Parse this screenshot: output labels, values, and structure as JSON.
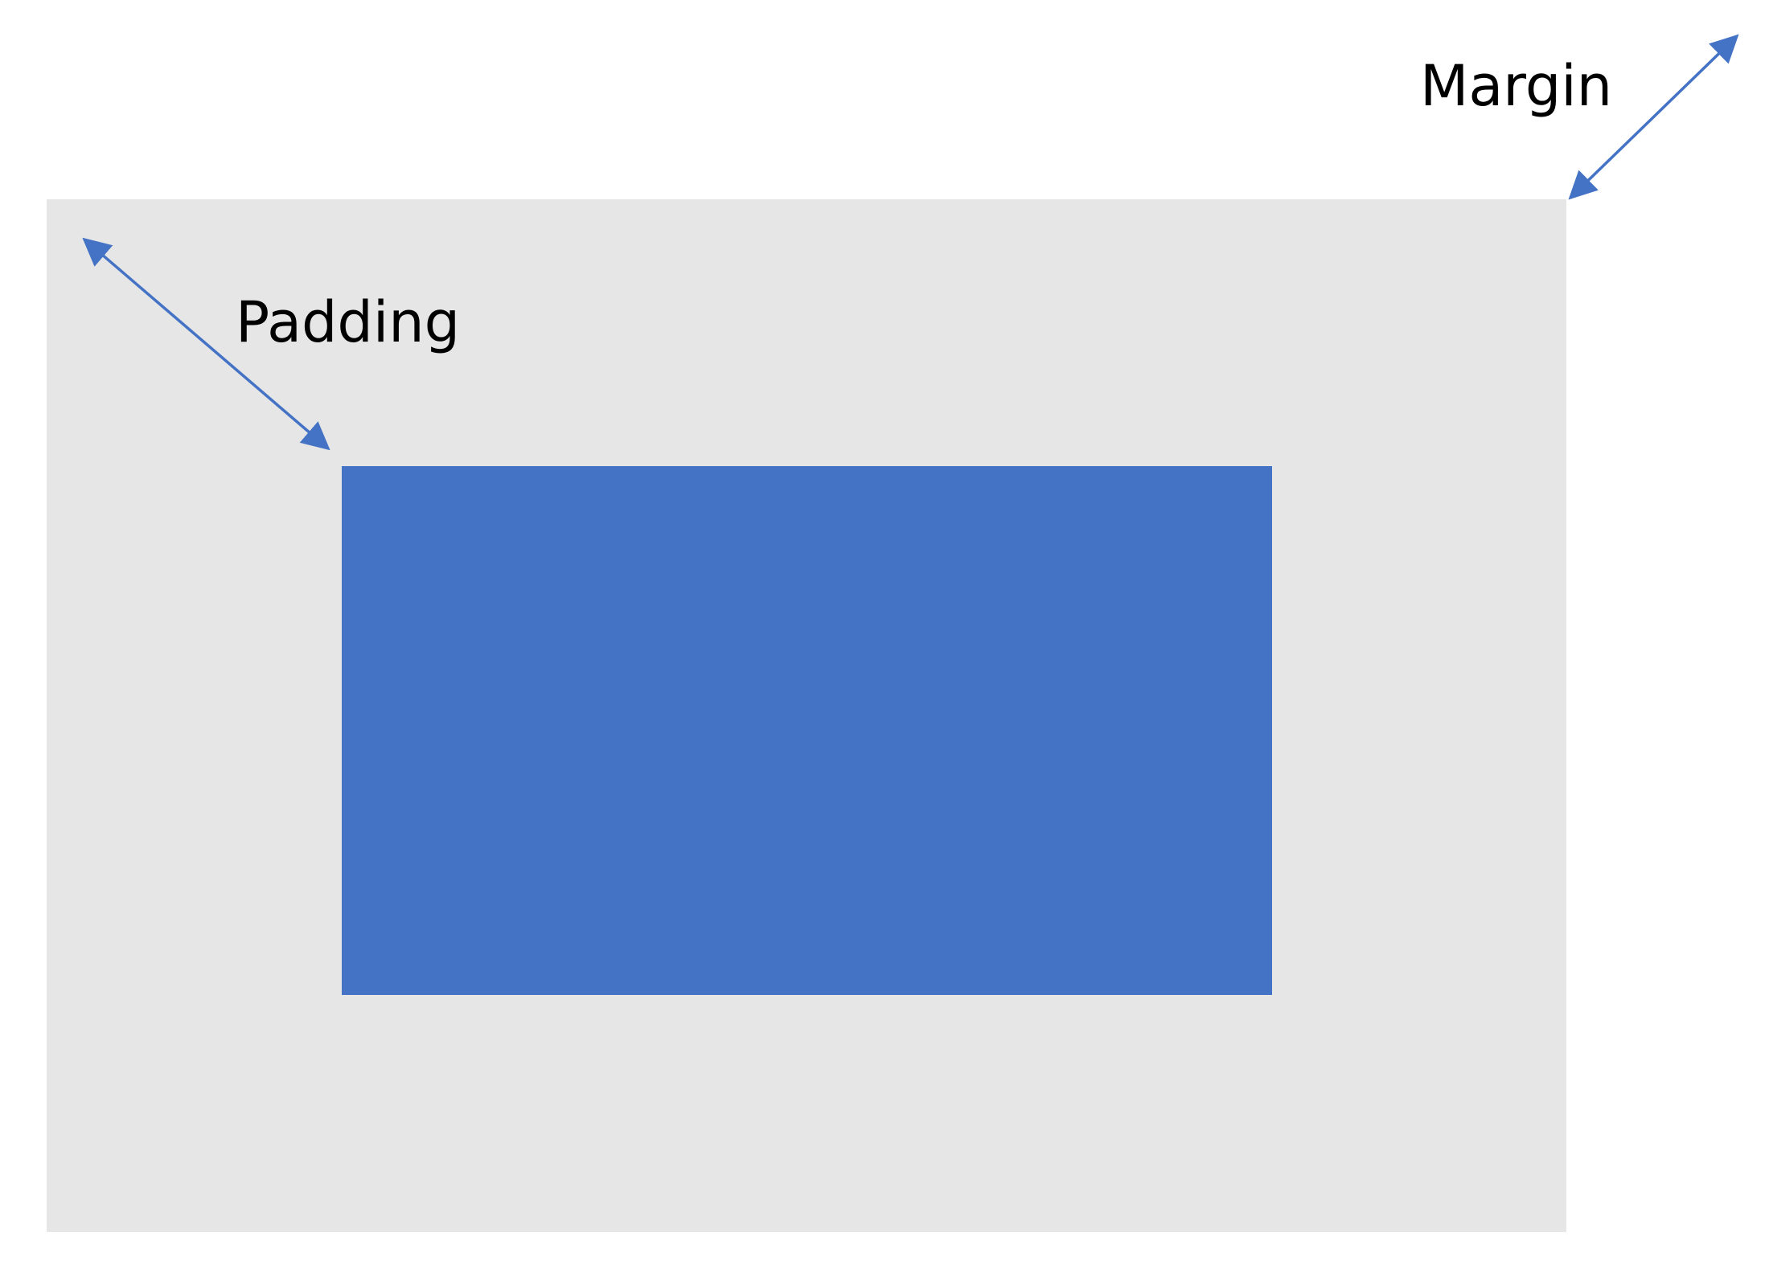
{
  "labels": {
    "margin": "Margin",
    "padding": "Padding"
  },
  "colors": {
    "outer_box": "#e6e6e6",
    "inner_box": "#4472c4",
    "arrow": "#4472c4",
    "text": "#000000",
    "background": "#ffffff"
  },
  "icons": {
    "margin_arrow": "double-headed-arrow-icon",
    "padding_arrow": "double-headed-arrow-icon"
  }
}
